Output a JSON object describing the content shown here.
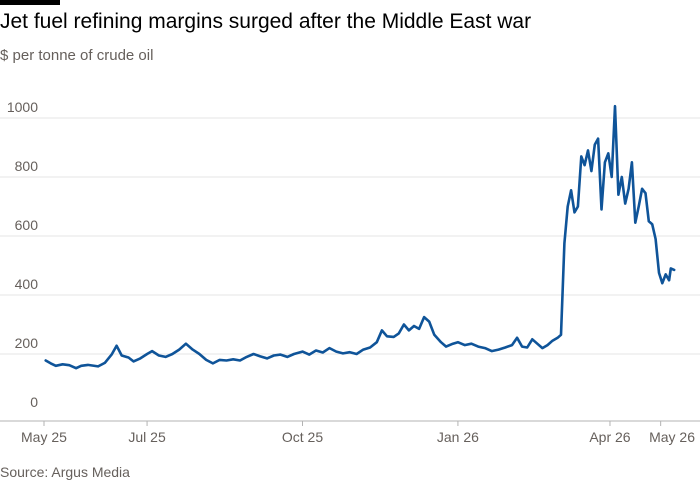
{
  "title": "Jet fuel refining margins surged after the Middle East war",
  "subtitle": "$ per tonne of crude oil",
  "source": "Source: Argus Media",
  "colors": {
    "line": "#0f5499",
    "grid": "#e6e6e6",
    "axis": "#b3b3b3",
    "text": "#66605c"
  },
  "chart_data": {
    "type": "line",
    "title": "Jet fuel refining margins surged after the Middle East war",
    "ylabel": "$ per tonne of crude oil",
    "xlabel": "",
    "ylim": [
      0,
      1000
    ],
    "yticks": [
      0,
      200,
      400,
      600,
      800,
      1000
    ],
    "xticks": [
      {
        "date": "2025-05-01",
        "label": "May 25"
      },
      {
        "date": "2025-07-01",
        "label": "Jul 25"
      },
      {
        "date": "2025-10-01",
        "label": "Oct 25"
      },
      {
        "date": "2026-01-01",
        "label": "Jan 26"
      },
      {
        "date": "2026-04-01",
        "label": "Apr 26"
      },
      {
        "date": "2026-05-01",
        "label": "May 26"
      }
    ],
    "grid": true,
    "series": [
      {
        "points": [
          [
            "2025-05-02",
            178
          ],
          [
            "2025-05-05",
            168
          ],
          [
            "2025-05-08",
            160
          ],
          [
            "2025-05-12",
            165
          ],
          [
            "2025-05-16",
            162
          ],
          [
            "2025-05-20",
            152
          ],
          [
            "2025-05-23",
            160
          ],
          [
            "2025-05-27",
            163
          ],
          [
            "2025-06-02",
            158
          ],
          [
            "2025-06-06",
            170
          ],
          [
            "2025-06-10",
            198
          ],
          [
            "2025-06-13",
            228
          ],
          [
            "2025-06-16",
            195
          ],
          [
            "2025-06-20",
            188
          ],
          [
            "2025-06-23",
            175
          ],
          [
            "2025-06-27",
            185
          ],
          [
            "2025-07-01",
            200
          ],
          [
            "2025-07-04",
            210
          ],
          [
            "2025-07-08",
            195
          ],
          [
            "2025-07-12",
            190
          ],
          [
            "2025-07-16",
            200
          ],
          [
            "2025-07-20",
            215
          ],
          [
            "2025-07-24",
            235
          ],
          [
            "2025-07-28",
            215
          ],
          [
            "2025-08-01",
            200
          ],
          [
            "2025-08-05",
            180
          ],
          [
            "2025-08-09",
            168
          ],
          [
            "2025-08-13",
            180
          ],
          [
            "2025-08-17",
            178
          ],
          [
            "2025-08-21",
            182
          ],
          [
            "2025-08-25",
            178
          ],
          [
            "2025-08-29",
            190
          ],
          [
            "2025-09-02",
            200
          ],
          [
            "2025-09-06",
            192
          ],
          [
            "2025-09-10",
            185
          ],
          [
            "2025-09-14",
            195
          ],
          [
            "2025-09-18",
            198
          ],
          [
            "2025-09-22",
            190
          ],
          [
            "2025-09-26",
            200
          ],
          [
            "2025-10-01",
            208
          ],
          [
            "2025-10-05",
            198
          ],
          [
            "2025-10-09",
            212
          ],
          [
            "2025-10-13",
            205
          ],
          [
            "2025-10-17",
            220
          ],
          [
            "2025-10-21",
            208
          ],
          [
            "2025-10-25",
            202
          ],
          [
            "2025-10-29",
            206
          ],
          [
            "2025-11-02",
            200
          ],
          [
            "2025-11-06",
            215
          ],
          [
            "2025-11-10",
            222
          ],
          [
            "2025-11-14",
            240
          ],
          [
            "2025-11-17",
            280
          ],
          [
            "2025-11-20",
            260
          ],
          [
            "2025-11-24",
            258
          ],
          [
            "2025-11-27",
            270
          ],
          [
            "2025-11-30",
            300
          ],
          [
            "2025-12-03",
            280
          ],
          [
            "2025-12-06",
            295
          ],
          [
            "2025-12-09",
            285
          ],
          [
            "2025-12-12",
            325
          ],
          [
            "2025-12-15",
            310
          ],
          [
            "2025-12-18",
            265
          ],
          [
            "2025-12-22",
            240
          ],
          [
            "2025-12-25",
            225
          ],
          [
            "2025-12-29",
            235
          ],
          [
            "2026-01-01",
            240
          ],
          [
            "2026-01-05",
            230
          ],
          [
            "2026-01-09",
            235
          ],
          [
            "2026-01-13",
            225
          ],
          [
            "2026-01-17",
            220
          ],
          [
            "2026-01-21",
            210
          ],
          [
            "2026-01-25",
            215
          ],
          [
            "2026-01-29",
            222
          ],
          [
            "2026-02-02",
            230
          ],
          [
            "2026-02-05",
            255
          ],
          [
            "2026-02-08",
            225
          ],
          [
            "2026-02-11",
            222
          ],
          [
            "2026-02-14",
            250
          ],
          [
            "2026-02-17",
            235
          ],
          [
            "2026-02-20",
            220
          ],
          [
            "2026-02-23",
            230
          ],
          [
            "2026-02-26",
            245
          ],
          [
            "2026-03-01",
            255
          ],
          [
            "2026-03-03",
            265
          ],
          [
            "2026-03-05",
            575
          ],
          [
            "2026-03-07",
            700
          ],
          [
            "2026-03-09",
            755
          ],
          [
            "2026-03-11",
            680
          ],
          [
            "2026-03-13",
            700
          ],
          [
            "2026-03-15",
            870
          ],
          [
            "2026-03-17",
            840
          ],
          [
            "2026-03-19",
            890
          ],
          [
            "2026-03-21",
            820
          ],
          [
            "2026-03-23",
            910
          ],
          [
            "2026-03-25",
            930
          ],
          [
            "2026-03-27",
            690
          ],
          [
            "2026-03-29",
            850
          ],
          [
            "2026-03-31",
            880
          ],
          [
            "2026-04-02",
            800
          ],
          [
            "2026-04-04",
            1040
          ],
          [
            "2026-04-06",
            740
          ],
          [
            "2026-04-08",
            800
          ],
          [
            "2026-04-10",
            710
          ],
          [
            "2026-04-12",
            760
          ],
          [
            "2026-04-14",
            850
          ],
          [
            "2026-04-16",
            645
          ],
          [
            "2026-04-18",
            700
          ],
          [
            "2026-04-20",
            760
          ],
          [
            "2026-04-22",
            745
          ],
          [
            "2026-04-24",
            650
          ],
          [
            "2026-04-26",
            640
          ],
          [
            "2026-04-28",
            590
          ],
          [
            "2026-04-30",
            475
          ],
          [
            "2026-05-02",
            440
          ],
          [
            "2026-05-04",
            470
          ],
          [
            "2026-05-06",
            450
          ],
          [
            "2026-05-07",
            490
          ],
          [
            "2026-05-09",
            485
          ]
        ]
      }
    ]
  }
}
